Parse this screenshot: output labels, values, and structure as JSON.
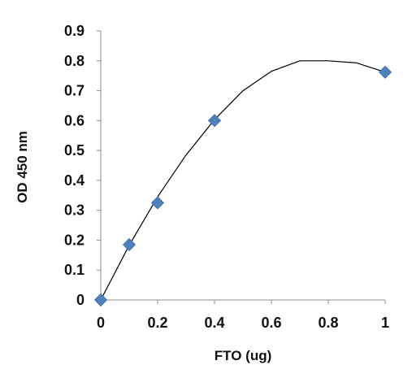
{
  "chart_data": {
    "type": "scatter",
    "xlabel": "FTO (ug)",
    "ylabel": "OD 450 nm",
    "xlim": [
      0,
      1
    ],
    "ylim": [
      0,
      0.9
    ],
    "x_ticks": [
      "0",
      "0.2",
      "0.4",
      "0.6",
      "0.8",
      "1"
    ],
    "y_ticks": [
      "0",
      "0.1",
      "0.2",
      "0.3",
      "0.4",
      "0.5",
      "0.6",
      "0.7",
      "0.8",
      "0.9"
    ],
    "grid": false,
    "legend": "none",
    "series": [
      {
        "marker": "diamond",
        "color": "#4f81bd",
        "x": [
          0,
          0.1,
          0.2,
          0.4,
          1.0
        ],
        "y": [
          0.0,
          0.185,
          0.325,
          0.6,
          0.762
        ]
      }
    ],
    "trendline": {
      "kind": "polynomial-2",
      "color": "#000000",
      "x": [
        0,
        0.1,
        0.2,
        0.3,
        0.4,
        0.5,
        0.6,
        0.7,
        0.8,
        0.9,
        1.0
      ],
      "y": [
        0.0,
        0.183,
        0.345,
        0.485,
        0.603,
        0.7,
        0.765,
        0.8,
        0.8,
        0.793,
        0.762
      ]
    }
  }
}
